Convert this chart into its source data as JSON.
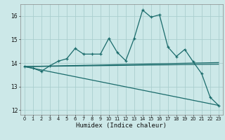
{
  "xlabel": "Humidex (Indice chaleur)",
  "background_color": "#cce8e8",
  "line_color": "#1a6b6b",
  "grid_color": "#aacece",
  "xlim": [
    -0.5,
    23.5
  ],
  "ylim": [
    11.8,
    16.5
  ],
  "yticks": [
    12,
    13,
    14,
    15,
    16
  ],
  "xticks": [
    0,
    1,
    2,
    3,
    4,
    5,
    6,
    7,
    8,
    9,
    10,
    11,
    12,
    13,
    14,
    15,
    16,
    17,
    18,
    19,
    20,
    21,
    22,
    23
  ],
  "main_series": {
    "x": [
      0,
      1,
      2,
      3,
      4,
      5,
      6,
      7,
      8,
      9,
      10,
      11,
      12,
      13,
      14,
      15,
      16,
      17,
      18,
      19,
      20,
      21,
      22,
      23
    ],
    "y": [
      13.85,
      13.78,
      13.65,
      13.88,
      14.08,
      14.18,
      14.62,
      14.38,
      14.38,
      14.38,
      15.05,
      14.45,
      14.1,
      15.05,
      16.25,
      15.95,
      16.05,
      14.68,
      14.28,
      14.58,
      14.05,
      13.55,
      12.55,
      12.2
    ]
  },
  "line1": {
    "x": [
      0,
      23
    ],
    "y": [
      13.85,
      14.02
    ]
  },
  "line2": {
    "x": [
      0,
      23
    ],
    "y": [
      13.85,
      13.95
    ]
  },
  "line3": {
    "x": [
      0,
      23
    ],
    "y": [
      13.85,
      12.2
    ]
  }
}
